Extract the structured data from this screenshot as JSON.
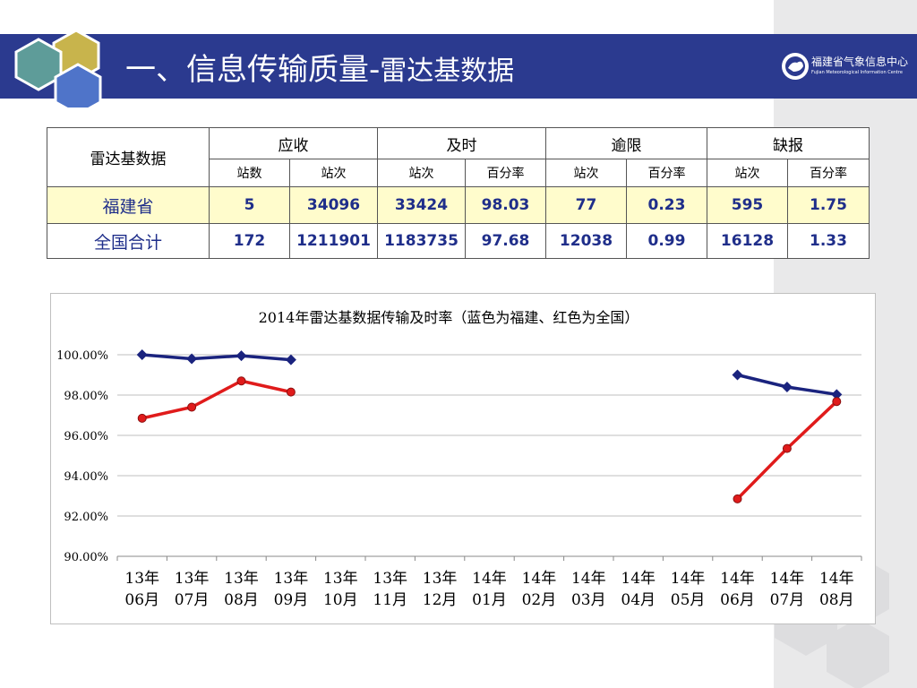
{
  "slide": {
    "title_main": "一、信息传输质量-",
    "title_sub": "雷达基数据",
    "logo_name": "福建省气象信息中心",
    "logo_subtitle": "Fujian Meteorological Information Centre"
  },
  "table": {
    "corner": "雷达基数据",
    "groups": [
      "应收",
      "及时",
      "逾限",
      "缺报"
    ],
    "subheaders": [
      "站数",
      "站次",
      "站次",
      "百分率",
      "站次",
      "百分率",
      "站次",
      "百分率"
    ],
    "rows": [
      {
        "label": "福建省",
        "values": [
          "5",
          "34096",
          "33424",
          "98.03",
          "77",
          "0.23",
          "595",
          "1.75"
        ]
      },
      {
        "label": "全国合计",
        "values": [
          "172",
          "1211901",
          "1183735",
          "97.68",
          "12038",
          "0.99",
          "16128",
          "1.33"
        ]
      }
    ]
  },
  "chart_data": {
    "type": "line",
    "title": "2014年雷达基数据传输及时率（蓝色为福建、红色为全国）",
    "categories": [
      "13年06月",
      "13年07月",
      "13年08月",
      "13年09月",
      "13年10月",
      "13年11月",
      "13年12月",
      "14年01月",
      "14年02月",
      "14年03月",
      "14年04月",
      "14年05月",
      "14年06月",
      "14年07月",
      "14年08月"
    ],
    "y_ticks": [
      "100.00%",
      "98.00%",
      "96.00%",
      "94.00%",
      "92.00%",
      "90.00%"
    ],
    "ylim": [
      90,
      100
    ],
    "grid": true,
    "series": [
      {
        "color": "#1a237e",
        "marker": "diamond",
        "values": [
          100.0,
          99.8,
          99.95,
          99.75,
          null,
          null,
          null,
          null,
          null,
          null,
          null,
          null,
          99.0,
          98.4,
          98.03
        ]
      },
      {
        "color": "#e01b1b",
        "marker": "circle",
        "values": [
          96.85,
          97.4,
          98.7,
          98.15,
          null,
          null,
          null,
          null,
          null,
          null,
          null,
          null,
          92.85,
          95.35,
          97.68
        ]
      }
    ]
  }
}
